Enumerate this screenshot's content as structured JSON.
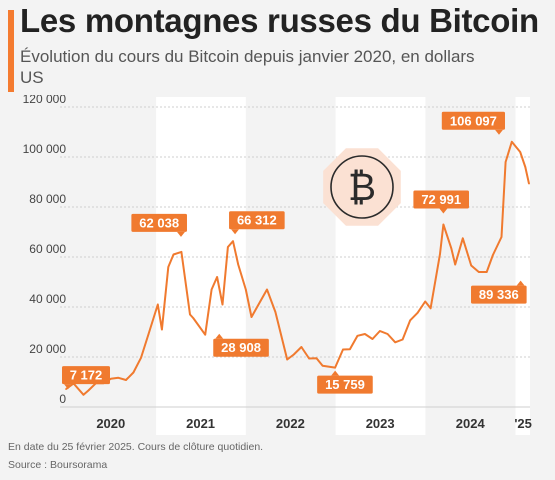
{
  "header": {
    "title": "Les montagnes russes du Bitcoin",
    "subtitle": "Évolution du cours du Bitcoin depuis janvier 2020, en dollars US"
  },
  "footer": {
    "note": "En date du 25 février 2025. Cours de clôture quotidien.",
    "source": "Source : Boursorama"
  },
  "colors": {
    "series": "#f07a2f",
    "label_bg": "#f07a2f",
    "band": "#ffffff",
    "background": "#f3f3f3",
    "icon_bg": "#fbe1d3"
  },
  "icon": "bitcoin-icon",
  "chart_data": {
    "type": "line",
    "title": "Les montagnes russes du Bitcoin",
    "ylim": [
      0,
      120000
    ],
    "y_ticks": [
      0,
      20000,
      40000,
      60000,
      80000,
      100000,
      120000
    ],
    "y_tick_labels": [
      "0",
      "20 000",
      "40 000",
      "60 000",
      "80 000",
      "100 000",
      "120 000"
    ],
    "x_tick_labels": [
      "2020",
      "2021",
      "2022",
      "2023",
      "2024",
      "'25"
    ],
    "grid": true,
    "alternating_year_bands": true,
    "series": [
      {
        "name": "Bitcoin",
        "x": [
          "2020-01-01",
          "2020-02-01",
          "2020-03-12",
          "2020-04-01",
          "2020-05-01",
          "2020-06-01",
          "2020-07-01",
          "2020-08-01",
          "2020-09-01",
          "2020-10-01",
          "2020-11-01",
          "2020-12-01",
          "2021-01-08",
          "2021-01-25",
          "2021-02-20",
          "2021-03-13",
          "2021-04-14",
          "2021-05-19",
          "2021-06-01",
          "2021-07-20",
          "2021-08-15",
          "2021-09-06",
          "2021-09-28",
          "2021-10-20",
          "2021-11-10",
          "2021-12-01",
          "2022-01-01",
          "2022-01-24",
          "2022-03-28",
          "2022-05-01",
          "2022-06-18",
          "2022-07-15",
          "2022-08-15",
          "2022-09-15",
          "2022-10-15",
          "2022-11-09",
          "2022-12-30",
          "2023-01-31",
          "2023-02-28",
          "2023-03-31",
          "2023-04-30",
          "2023-05-31",
          "2023-06-30",
          "2023-07-31",
          "2023-08-31",
          "2023-09-30",
          "2023-10-31",
          "2023-11-30",
          "2023-12-31",
          "2024-01-22",
          "2024-02-29",
          "2024-03-14",
          "2024-04-15",
          "2024-05-01",
          "2024-06-01",
          "2024-07-05",
          "2024-08-05",
          "2024-09-06",
          "2024-10-01",
          "2024-11-05",
          "2024-11-22",
          "2024-12-17",
          "2025-01-20",
          "2025-02-10",
          "2025-02-25"
        ],
        "values": [
          7172,
          9400,
          4900,
          6600,
          9500,
          9500,
          11300,
          11700,
          10800,
          13800,
          19700,
          29000,
          41000,
          31000,
          56000,
          61000,
          62038,
          37000,
          35600,
          28908,
          47000,
          52000,
          41000,
          64000,
          66312,
          57000,
          47000,
          36000,
          47000,
          38000,
          19000,
          21000,
          24000,
          19400,
          19500,
          16500,
          15759,
          23000,
          23100,
          28500,
          29200,
          27200,
          30400,
          29200,
          25900,
          27000,
          34700,
          37700,
          42200,
          39500,
          61200,
          72991,
          63500,
          57000,
          67500,
          56600,
          54000,
          54000,
          60800,
          68000,
          98000,
          106097,
          102000,
          96000,
          89336
        ]
      }
    ],
    "annotations": [
      {
        "x": "2020-01-01",
        "y": 7172,
        "label": "7 172"
      },
      {
        "x": "2021-04-14",
        "y": 62038,
        "label": "62 038"
      },
      {
        "x": "2021-07-20",
        "y": 28908,
        "label": "28 908"
      },
      {
        "x": "2021-11-10",
        "y": 66312,
        "label": "66 312"
      },
      {
        "x": "2022-12-30",
        "y": 15759,
        "label": "15 759"
      },
      {
        "x": "2024-03-14",
        "y": 72991,
        "label": "72 991"
      },
      {
        "x": "2024-12-17",
        "y": 106097,
        "label": "106 097"
      },
      {
        "x": "2025-02-25",
        "y": 89336,
        "label": "89 336"
      }
    ]
  }
}
